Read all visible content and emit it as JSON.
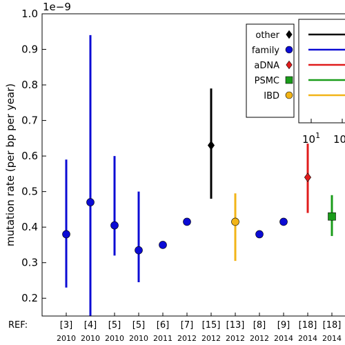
{
  "chart_data": {
    "type": "scatter",
    "exponent_label": "1e−9",
    "ylabel": "mutation rate (per bp per year)",
    "ylim": [
      0.15,
      1.0
    ],
    "yticks": [
      "0.2",
      "0.3",
      "0.4",
      "0.5",
      "0.6",
      "0.7",
      "0.8",
      "0.9",
      "1.0"
    ],
    "x_prefix": "REF:",
    "points": [
      {
        "ref": "[3]",
        "year": "2010",
        "category": "family",
        "y": 0.38,
        "lo": 0.23,
        "hi": 0.59
      },
      {
        "ref": "[4]",
        "year": "2010",
        "category": "family",
        "y": 0.47,
        "lo": 0.0,
        "hi": 0.94
      },
      {
        "ref": "[5]",
        "year": "2010",
        "category": "family",
        "y": 0.405,
        "lo": 0.32,
        "hi": 0.6
      },
      {
        "ref": "[5]",
        "year": "2010",
        "category": "family",
        "y": 0.335,
        "lo": 0.245,
        "hi": 0.5
      },
      {
        "ref": "[6]",
        "year": "2011",
        "category": "family",
        "y": 0.35
      },
      {
        "ref": "[7]",
        "year": "2012",
        "category": "family",
        "y": 0.415
      },
      {
        "ref": "[15]",
        "year": "2012",
        "category": "other",
        "y": 0.63,
        "lo": 0.48,
        "hi": 0.79
      },
      {
        "ref": "[13]",
        "year": "2012",
        "category": "IBD",
        "y": 0.415,
        "lo": 0.305,
        "hi": 0.495
      },
      {
        "ref": "[8]",
        "year": "2012",
        "category": "family",
        "y": 0.38
      },
      {
        "ref": "[9]",
        "year": "2014",
        "category": "family",
        "y": 0.415
      },
      {
        "ref": "[18]",
        "year": "2014",
        "category": "aDNA",
        "y": 0.54,
        "lo": 0.44,
        "hi": 0.635
      },
      {
        "ref": "[18]",
        "year": "2014",
        "category": "PSMC",
        "y": 0.43,
        "lo": 0.375,
        "hi": 0.49
      }
    ],
    "legend": [
      {
        "label": "other",
        "color": "#000000",
        "marker": "diamond"
      },
      {
        "label": "family",
        "color": "#0b0bd4",
        "marker": "circle"
      },
      {
        "label": "aDNA",
        "color": "#e01b1b",
        "marker": "diamond"
      },
      {
        "label": "PSMC",
        "color": "#1a9c1a",
        "marker": "square"
      },
      {
        "label": "IBD",
        "color": "#f2b417",
        "marker": "circle"
      }
    ],
    "legend_position": "top-right",
    "inset_xtick_labels": [
      {
        "base": "10",
        "exp": "1"
      },
      {
        "base": "10",
        "exp": ""
      }
    ]
  }
}
